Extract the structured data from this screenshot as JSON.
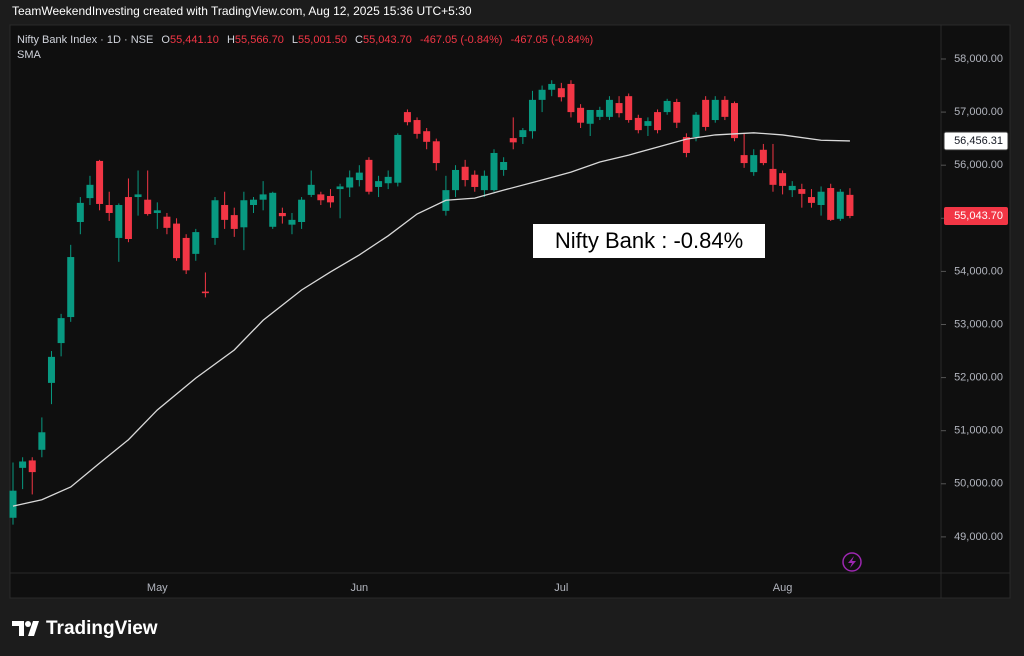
{
  "header": {
    "credit": "TeamWeekendInvesting created with TradingView.com, Aug 12, 2025 15:36 UTC+5:30"
  },
  "footer": {
    "logo": "TradingView"
  },
  "chart_data": {
    "type": "candlestick",
    "title": "Nifty Bank Index · 1D · NSE",
    "legend": {
      "o": "O",
      "open": "55,441.10",
      "h": "H",
      "high": "55,566.70",
      "l": "L",
      "low": "55,001.50",
      "c": "C",
      "close": "55,043.70",
      "change": "-467.05 (-0.84%)",
      "change_again": "-467.05 (-0.84%)"
    },
    "annotation": "Nifty Bank : -0.84%",
    "categories": [
      null,
      null,
      null,
      null,
      null,
      null,
      null,
      null,
      null,
      null,
      null,
      null,
      null,
      null,
      null,
      "May",
      null,
      null,
      null,
      null,
      null,
      null,
      null,
      null,
      null,
      null,
      null,
      null,
      null,
      null,
      null,
      null,
      null,
      null,
      null,
      null,
      "Jun",
      null,
      null,
      null,
      null,
      null,
      null,
      null,
      null,
      null,
      null,
      null,
      null,
      null,
      null,
      null,
      null,
      null,
      null,
      null,
      null,
      "Jul",
      null,
      null,
      null,
      null,
      null,
      null,
      null,
      null,
      null,
      null,
      null,
      null,
      null,
      null,
      null,
      null,
      null,
      null,
      null,
      null,
      null,
      null,
      "Aug",
      null,
      null,
      null,
      null,
      null,
      null,
      null
    ],
    "open": [
      49360,
      50300,
      50440,
      50640,
      51900,
      52650,
      53140,
      54930,
      55380,
      56080,
      55250,
      54630,
      55400,
      55400,
      55350,
      55100,
      55030,
      54900,
      54630,
      54330,
      53620,
      54630,
      55250,
      55060,
      54830,
      55250,
      55350,
      54840,
      55100,
      54880,
      54930,
      55440,
      55450,
      55420,
      55550,
      55580,
      55720,
      56100,
      55590,
      55660,
      55670,
      57000,
      56850,
      56640,
      56450,
      55140,
      55530,
      55970,
      55820,
      55530,
      55530,
      55910,
      56510,
      56530,
      56640,
      57230,
      57420,
      57450,
      57530,
      57080,
      56780,
      56910,
      56910,
      57170,
      57300,
      56890,
      56740,
      57000,
      57000,
      57190,
      56530,
      56530,
      57230,
      56850,
      57230,
      57170,
      56190,
      55870,
      56290,
      55930,
      55850,
      55530,
      55550,
      55400,
      55250,
      55570,
      54990,
      55441.1
    ],
    "high": [
      50400,
      50500,
      50500,
      51250,
      52500,
      53200,
      54500,
      55400,
      55800,
      56100,
      55500,
      55280,
      55750,
      55900,
      55900,
      55300,
      55100,
      55000,
      54700,
      54800,
      53980,
      55400,
      55500,
      55200,
      55500,
      55400,
      55700,
      55500,
      55200,
      55100,
      55400,
      55900,
      55500,
      55550,
      55650,
      55900,
      56000,
      56150,
      55800,
      55900,
      56600,
      57050,
      56900,
      56700,
      56500,
      55800,
      56000,
      56100,
      55900,
      55900,
      56300,
      56150,
      56900,
      56700,
      57400,
      57500,
      57600,
      57550,
      57600,
      57150,
      57000,
      57100,
      57300,
      57300,
      57350,
      56950,
      56900,
      57050,
      57250,
      57250,
      56600,
      57000,
      57300,
      57300,
      57300,
      57200,
      56600,
      56300,
      56400,
      56400,
      55900,
      55700,
      55650,
      55550,
      55600,
      55650,
      55550,
      55566.7
    ],
    "low": [
      49230,
      49900,
      49800,
      50500,
      51500,
      52400,
      53050,
      54700,
      55250,
      55150,
      54950,
      54180,
      54550,
      55050,
      55050,
      54800,
      54700,
      54200,
      53950,
      54200,
      53510,
      54500,
      54800,
      54650,
      54400,
      55100,
      55150,
      54800,
      54900,
      54700,
      54800,
      55400,
      55250,
      55200,
      55000,
      55400,
      55600,
      55450,
      55400,
      55550,
      55600,
      56750,
      56500,
      56300,
      55900,
      55050,
      55400,
      55600,
      55500,
      55400,
      55500,
      55800,
      56300,
      56400,
      56500,
      57000,
      57300,
      57200,
      56900,
      56700,
      56550,
      56850,
      56850,
      56900,
      56800,
      56600,
      56550,
      56600,
      56950,
      56700,
      56150,
      56450,
      56650,
      56800,
      56850,
      56450,
      55950,
      55800,
      56000,
      55500,
      55450,
      55400,
      55200,
      55200,
      55050,
      54950,
      54950,
      55001.5
    ],
    "close": [
      49870,
      50420,
      50220,
      50970,
      52390,
      53120,
      54270,
      55290,
      55630,
      55270,
      55100,
      55250,
      54610,
      55450,
      55080,
      55150,
      54820,
      54250,
      54020,
      54740,
      53590,
      55340,
      54970,
      54800,
      55340,
      55350,
      55450,
      55480,
      55040,
      54970,
      55350,
      55630,
      55340,
      55300,
      55600,
      55770,
      55860,
      55500,
      55700,
      55780,
      56570,
      56810,
      56590,
      56440,
      56040,
      55530,
      55910,
      55720,
      55590,
      55800,
      56230,
      56060,
      56430,
      56660,
      57230,
      57420,
      57530,
      57280,
      57000,
      56800,
      57040,
      57040,
      57230,
      56980,
      56850,
      56660,
      56830,
      56660,
      57210,
      56800,
      56230,
      56950,
      56720,
      57230,
      56910,
      56510,
      56040,
      56190,
      56040,
      55630,
      55610,
      55610,
      55460,
      55290,
      55500,
      54970,
      55500,
      55043.7
    ],
    "up_color": "#089981",
    "down_color": "#f23645",
    "sma": {
      "name": "SMA",
      "color": "#d9d9d9",
      "x": [
        0,
        3,
        6,
        9,
        12,
        15,
        19,
        23,
        26,
        30,
        33,
        36,
        39,
        42,
        45,
        48,
        51,
        55,
        58,
        61,
        64,
        67,
        70,
        73,
        77,
        80,
        84,
        87
      ],
      "values": [
        49580,
        49700,
        49940,
        50390,
        50830,
        51390,
        51990,
        52520,
        53080,
        53650,
        53990,
        54310,
        54670,
        55080,
        55340,
        55380,
        55530,
        55720,
        55870,
        56060,
        56190,
        56340,
        56490,
        56570,
        56610,
        56570,
        56470,
        56456.31
      ]
    },
    "ylim": [
      48320,
      58640
    ],
    "yticks": [
      {
        "value": 49000,
        "label": "49,000.00"
      },
      {
        "value": 50000,
        "label": "50,000.00"
      },
      {
        "value": 51000,
        "label": "51,000.00"
      },
      {
        "value": 52000,
        "label": "52,000.00"
      },
      {
        "value": 53000,
        "label": "53,000.00"
      },
      {
        "value": 54000,
        "label": "54,000.00"
      },
      {
        "value": 55000,
        "label": "55,000.00"
      },
      {
        "value": 56000,
        "label": "56,000.00"
      },
      {
        "value": 57000,
        "label": "57,000.00"
      },
      {
        "value": 58000,
        "label": "58,000.00"
      }
    ],
    "sma_price": {
      "value": 56456.31,
      "label": "56,456.31"
    },
    "last_price": {
      "value": 55043.7,
      "label": "55,043.70"
    }
  }
}
